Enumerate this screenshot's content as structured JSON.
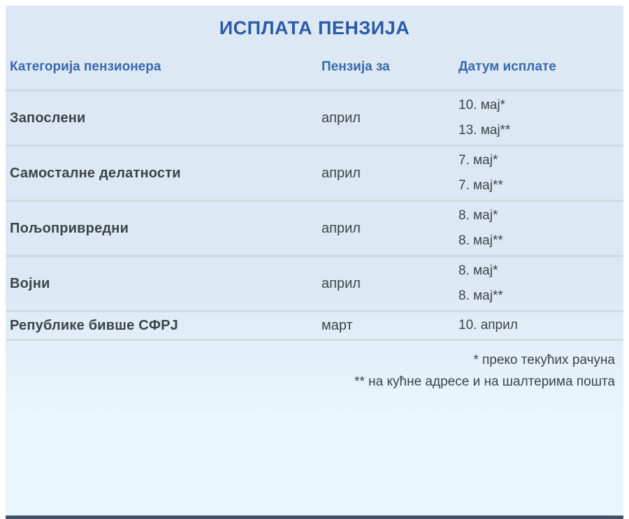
{
  "title": "ИСПЛАТА ПЕНЗИЈА",
  "table": {
    "headers": {
      "category": "Категорија пензионера",
      "pension_for": "Пензија за",
      "payment_date": "Датум исплате"
    },
    "rows": [
      {
        "category": "Запослени",
        "pension_for": "април",
        "dates": [
          "10. мај*",
          "13. мај**"
        ]
      },
      {
        "category": "Самосталне делатности",
        "pension_for": "април",
        "dates": [
          "7. мај*",
          "7. мај**"
        ]
      },
      {
        "category": "Пољопривредни",
        "pension_for": "април",
        "dates": [
          "8. мај*",
          "8. мај**"
        ]
      },
      {
        "category": "Војни",
        "pension_for": "април",
        "dates": [
          "8. мај*",
          "8. мај**"
        ]
      },
      {
        "category": "Републике бивше СФРЈ",
        "pension_for": "март",
        "dates": [
          "10. април"
        ]
      }
    ]
  },
  "footnotes": [
    "* преко текућих рачуна",
    "** на кућне адресе и на шалтерима пошта"
  ],
  "colors": {
    "title": "#2a5aa8",
    "header": "#3a68ae",
    "body": "#3f4347",
    "panel_top": "#dce9f4",
    "panel_bottom": "#eaf6fd",
    "divider": "#ccd6da",
    "bottom_bar": "#26354e",
    "page_bg": "#ffffff"
  }
}
